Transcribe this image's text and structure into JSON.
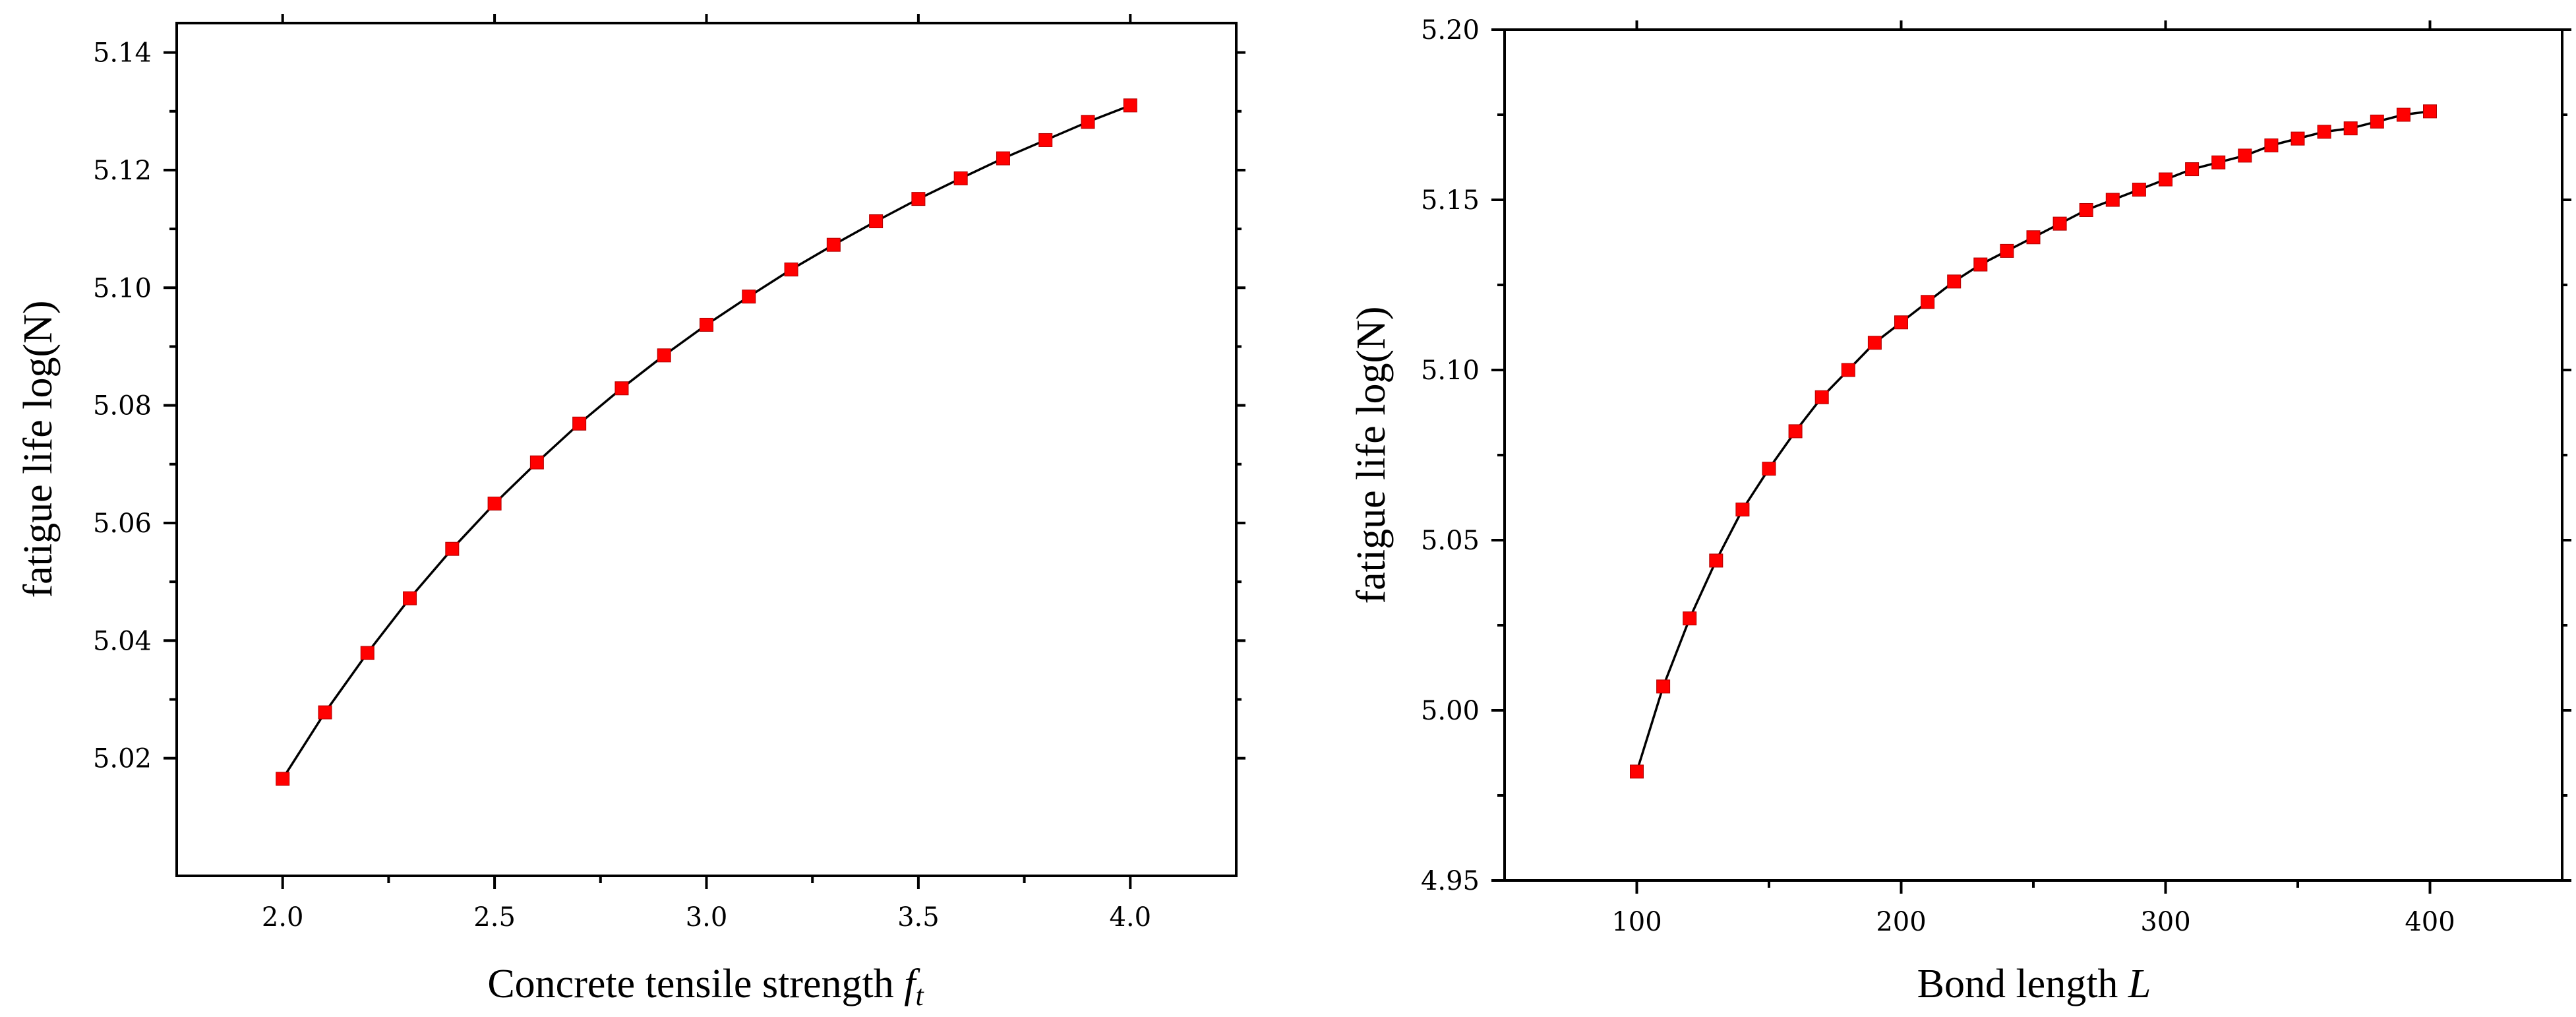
{
  "chart_data": [
    {
      "type": "line",
      "title": "",
      "xlabel": "Concrete tensile strength",
      "xlabel_symbol": "f",
      "xlabel_subscript": "t",
      "ylabel": "fatigue life log(N)",
      "xlim": [
        1.75,
        4.25
      ],
      "ylim": [
        5.0,
        5.145
      ],
      "xticks": [
        2.0,
        2.5,
        3.0,
        3.5,
        4.0
      ],
      "xtick_labels": [
        "2.0",
        "2.5",
        "3.0",
        "3.5",
        "4.0"
      ],
      "yticks": [
        5.02,
        5.04,
        5.06,
        5.08,
        5.1,
        5.12,
        5.14
      ],
      "ytick_labels": [
        "5.02",
        "5.04",
        "5.06",
        "5.08",
        "5.10",
        "5.12",
        "5.14"
      ],
      "grid": false,
      "series": [
        {
          "name": "fatigue life",
          "color": "#ff0000",
          "x": [
            2.0,
            2.1,
            2.2,
            2.3,
            2.4,
            2.5,
            2.6,
            2.7,
            2.8,
            2.9,
            3.0,
            3.1,
            3.2,
            3.3,
            3.4,
            3.5,
            3.6,
            3.7,
            3.8,
            3.9,
            4.0
          ],
          "values": [
            5.0165,
            5.0278,
            5.0379,
            5.0472,
            5.0556,
            5.0633,
            5.0703,
            5.0769,
            5.0829,
            5.0885,
            5.0937,
            5.0985,
            5.1031,
            5.1073,
            5.1113,
            5.1151,
            5.1186,
            5.122,
            5.1251,
            5.1282,
            5.131
          ]
        }
      ]
    },
    {
      "type": "line",
      "title": "",
      "xlabel": "Bond length",
      "xlabel_symbol": "L",
      "ylabel": "fatigue life log(N)",
      "xlim": [
        50,
        450
      ],
      "ylim": [
        4.95,
        5.2
      ],
      "xticks": [
        100,
        200,
        300,
        400
      ],
      "xtick_labels": [
        "100",
        "200",
        "300",
        "400"
      ],
      "yticks": [
        4.95,
        5.0,
        5.05,
        5.1,
        5.15,
        5.2
      ],
      "ytick_labels": [
        "4.95",
        "5.00",
        "5.05",
        "5.10",
        "5.15",
        "5.20"
      ],
      "grid": false,
      "series": [
        {
          "name": "fatigue life",
          "color": "#ff0000",
          "x": [
            100,
            110,
            120,
            130,
            140,
            150,
            160,
            170,
            180,
            190,
            200,
            210,
            220,
            230,
            240,
            250,
            260,
            270,
            280,
            290,
            300,
            310,
            320,
            330,
            340,
            350,
            360,
            370,
            380,
            390,
            400
          ],
          "values": [
            4.982,
            5.007,
            5.027,
            5.044,
            5.059,
            5.071,
            5.082,
            5.092,
            5.1,
            5.108,
            5.114,
            5.12,
            5.126,
            5.131,
            5.135,
            5.139,
            5.143,
            5.147,
            5.15,
            5.153,
            5.156,
            5.159,
            5.161,
            5.163,
            5.166,
            5.168,
            5.17,
            5.171,
            5.173,
            5.175,
            5.176
          ]
        }
      ]
    }
  ]
}
